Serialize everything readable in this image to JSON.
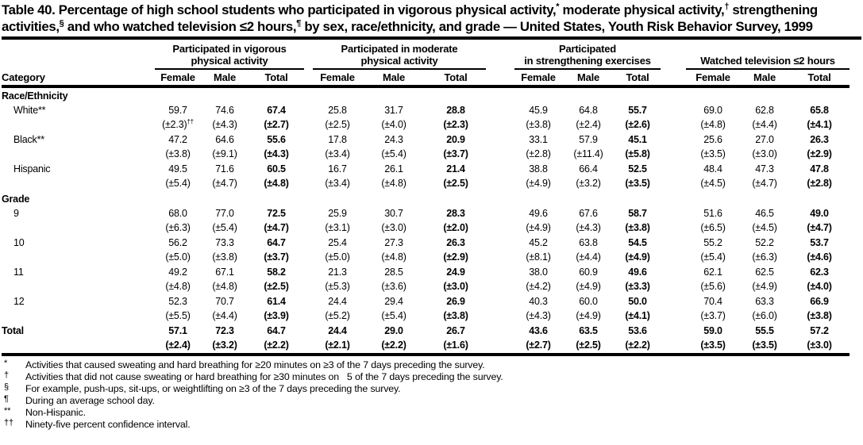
{
  "title_parts": [
    {
      "t": "Table 40. Percentage of high school students who participated in vigorous physical activity,"
    },
    {
      "t": "*",
      "sup": true
    },
    {
      "t": " moderate physical activity,"
    },
    {
      "t": "†",
      "sup": true
    },
    {
      "t": " strengthening activities,"
    },
    {
      "t": "§",
      "sup": true
    },
    {
      "t": " and who watched television ≤2 hours,"
    },
    {
      "t": "¶",
      "sup": true
    },
    {
      "t": " by sex, race/ethnicity, and grade — United States, Youth Risk Behavior Survey, 1999"
    }
  ],
  "table": {
    "category_header": "Category",
    "groups": [
      {
        "label_lines": [
          "Participated in vigorous",
          "physical activity"
        ],
        "columns": [
          "Female",
          "Male",
          "Total"
        ]
      },
      {
        "label_lines": [
          "Participated in moderate",
          "physical activity"
        ],
        "columns": [
          "Female",
          "Male",
          "Total"
        ]
      },
      {
        "label_lines": [
          "Participated",
          "in strengthening exercises"
        ],
        "columns": [
          "Female",
          "Male",
          "Total"
        ]
      },
      {
        "label_lines": [
          "Watched television ≤2 hours"
        ],
        "columns": [
          "Female",
          "Male",
          "Total"
        ]
      }
    ],
    "sections": [
      {
        "heading": "Race/Ethnicity",
        "rows": [
          {
            "label": "White**",
            "indent": true,
            "values": [
              "59.7",
              "74.6",
              "67.4",
              "25.8",
              "31.7",
              "28.8",
              "45.9",
              "64.8",
              "55.7",
              "69.0",
              "62.8",
              "65.8"
            ],
            "ci": [
              "(±2.3)",
              "(±4.3)",
              "(±2.7)",
              "(±2.5)",
              "(±4.0)",
              "(±2.3)",
              "(±3.8)",
              "(±2.4)",
              "(±2.6)",
              "(±4.8)",
              "(±4.4)",
              "(±4.1)"
            ],
            "ci_sup": {
              "index": 0,
              "text": "††"
            }
          },
          {
            "label": "Black**",
            "indent": true,
            "values": [
              "47.2",
              "64.6",
              "55.6",
              "17.8",
              "24.3",
              "20.9",
              "33.1",
              "57.9",
              "45.1",
              "25.6",
              "27.0",
              "26.3"
            ],
            "ci": [
              "(±3.8)",
              "(±9.1)",
              "(±4.3)",
              "(±3.4)",
              "(±5.4)",
              "(±3.7)",
              "(±2.8)",
              "(±11.4)",
              "(±5.8)",
              "(±3.5)",
              "(±3.0)",
              "(±2.9)"
            ]
          },
          {
            "label": "Hispanic",
            "indent": true,
            "values": [
              "49.5",
              "71.6",
              "60.5",
              "16.7",
              "26.1",
              "21.4",
              "38.8",
              "66.4",
              "52.5",
              "48.4",
              "47.3",
              "47.8"
            ],
            "ci": [
              "(±5.4)",
              "(±4.7)",
              "(±4.8)",
              "(±3.4)",
              "(±4.8)",
              "(±2.5)",
              "(±4.9)",
              "(±3.2)",
              "(±3.5)",
              "(±4.5)",
              "(±4.7)",
              "(±2.8)"
            ]
          }
        ]
      },
      {
        "heading": "Grade",
        "rows": [
          {
            "label": "9",
            "indent": true,
            "values": [
              "68.0",
              "77.0",
              "72.5",
              "25.9",
              "30.7",
              "28.3",
              "49.6",
              "67.6",
              "58.7",
              "51.6",
              "46.5",
              "49.0"
            ],
            "ci": [
              "(±6.3)",
              "(±5.4)",
              "(±4.7)",
              "(±3.1)",
              "(±3.0)",
              "(±2.0)",
              "(±4.9)",
              "(±4.3)",
              "(±3.8)",
              "(±6.5)",
              "(±4.5)",
              "(±4.7)"
            ]
          },
          {
            "label": "10",
            "indent": true,
            "values": [
              "56.2",
              "73.3",
              "64.7",
              "25.4",
              "27.3",
              "26.3",
              "45.2",
              "63.8",
              "54.5",
              "55.2",
              "52.2",
              "53.7"
            ],
            "ci": [
              "(±5.0)",
              "(±3.8)",
              "(±3.7)",
              "(±5.0)",
              "(±4.8)",
              "(±2.9)",
              "(±8.1)",
              "(±4.4)",
              "(±4.9)",
              "(±5.4)",
              "(±6.3)",
              "(±4.6)"
            ]
          },
          {
            "label": "11",
            "indent": true,
            "values": [
              "49.2",
              "67.1",
              "58.2",
              "21.3",
              "28.5",
              "24.9",
              "38.0",
              "60.9",
              "49.6",
              "62.1",
              "62.5",
              "62.3"
            ],
            "ci": [
              "(±4.8)",
              "(±4.8)",
              "(±2.5)",
              "(±5.3)",
              "(±3.6)",
              "(±3.0)",
              "(±4.2)",
              "(±4.9)",
              "(±3.3)",
              "(±5.6)",
              "(±4.9)",
              "(±4.0)"
            ]
          },
          {
            "label": "12",
            "indent": true,
            "values": [
              "52.3",
              "70.7",
              "61.4",
              "24.4",
              "29.4",
              "26.9",
              "40.3",
              "60.0",
              "50.0",
              "70.4",
              "63.3",
              "66.9"
            ],
            "ci": [
              "(±5.5)",
              "(±4.4)",
              "(±3.9)",
              "(±5.2)",
              "(±5.4)",
              "(±3.8)",
              "(±4.3)",
              "(±4.9)",
              "(±4.1)",
              "(±3.7)",
              "(±6.0)",
              "(±3.8)"
            ]
          }
        ]
      }
    ],
    "total_row": {
      "label": "Total",
      "indent": false,
      "values": [
        "57.1",
        "72.3",
        "64.7",
        "24.4",
        "29.0",
        "26.7",
        "43.6",
        "63.5",
        "53.6",
        "59.0",
        "55.5",
        "57.2"
      ],
      "ci": [
        "(±2.4)",
        "(±3.2)",
        "(±2.2)",
        "(±2.1)",
        "(±2.2)",
        "(±1.6)",
        "(±2.7)",
        "(±2.5)",
        "(±2.2)",
        "(±3.5)",
        "(±3.5)",
        "(±3.0)"
      ]
    }
  },
  "footnotes": [
    {
      "marker": "*",
      "text": "Activities that caused sweating and hard breathing for ≥20 minutes on ≥3 of the 7 days preceding the survey."
    },
    {
      "marker": "†",
      "text": "Activities that did not cause sweating or hard breathing for ≥30 minutes on   5 of the 7 days preceding the survey."
    },
    {
      "marker": "§",
      "text": "For example, push-ups, sit-ups, or weightlifting on ≥3 of the 7 days preceding the survey."
    },
    {
      "marker": "¶",
      "text": "During an average school day."
    },
    {
      "marker": "**",
      "text": "Non-Hispanic."
    },
    {
      "marker": "††",
      "text": "Ninety-five percent confidence interval."
    }
  ],
  "colors": {
    "text": "#000000",
    "background": "#ffffff"
  }
}
